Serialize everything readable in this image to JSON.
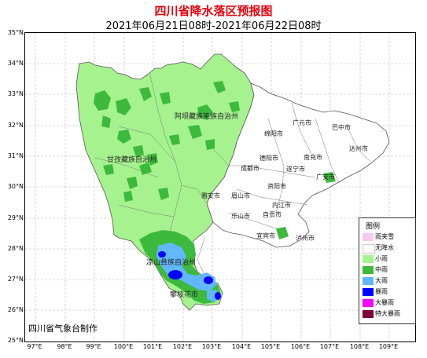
{
  "title": "四川省降水落区预报图",
  "subtitle": "2021年06月21日08时-2021年06月22日08时",
  "credit": "四川省气象台制作",
  "axes": {
    "lat_labels": [
      "35°N",
      "34°N",
      "33°N",
      "32°N",
      "31°N",
      "30°N",
      "29°N",
      "28°N",
      "27°N",
      "26°N",
      "25°N"
    ],
    "lon_labels": [
      "97°E",
      "98°E",
      "99°E",
      "100°E",
      "101°E",
      "102°E",
      "103°E",
      "104°E",
      "105°E",
      "106°E",
      "107°E",
      "108°E",
      "109°E"
    ]
  },
  "legend": {
    "title": "图例",
    "items": [
      {
        "label": "雨夹雪",
        "color": "#f8c8f0"
      },
      {
        "label": "无降水",
        "color": "#ffffff"
      },
      {
        "label": "小雨",
        "color": "#a6f28f"
      },
      {
        "label": "中雨",
        "color": "#3dba3d"
      },
      {
        "label": "大雨",
        "color": "#61b8ff"
      },
      {
        "label": "暴雨",
        "color": "#0000ff"
      },
      {
        "label": "大暴雨",
        "color": "#fa00fa"
      },
      {
        "label": "特大暴雨",
        "color": "#800040"
      }
    ]
  },
  "labels": {
    "aba": "阿坝藏族羌族自治州",
    "ganzi": "甘孜藏族自治州",
    "liangshan": "凉山彝族自治州",
    "panzhihua": "攀枝花市",
    "guangyuan": "广元市",
    "bazhong": "巴中市",
    "mianyang": "绵阳市",
    "nanchong": "南充市",
    "dazhou": "达州市",
    "deyang": "德阳市",
    "chengdu": "成都市",
    "suining": "遂宁市",
    "guangan": "广安市",
    "ziyang": "资阳市",
    "yaan": "雅安市",
    "meishan": "眉山市",
    "neijiang": "内江市",
    "leshan": "乐山市",
    "zigong": "自贡市",
    "yibin": "宜宾市",
    "luzhou": "泸州市"
  }
}
